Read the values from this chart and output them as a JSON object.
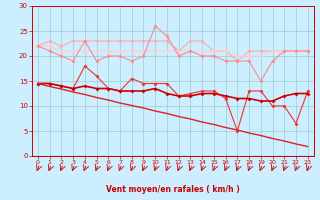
{
  "background_color": "#cceeff",
  "grid_color": "#99cccc",
  "xlabel": "Vent moyen/en rafales ( km/h )",
  "xlabel_color": "#cc0000",
  "tick_color": "#cc0000",
  "xlim": [
    -0.5,
    23.5
  ],
  "ylim": [
    0,
    30
  ],
  "yticks": [
    0,
    5,
    10,
    15,
    20,
    25,
    30
  ],
  "xticks": [
    0,
    1,
    2,
    3,
    4,
    5,
    6,
    7,
    8,
    9,
    10,
    11,
    12,
    13,
    14,
    15,
    16,
    17,
    18,
    19,
    20,
    21,
    22,
    23
  ],
  "x": [
    0,
    1,
    2,
    3,
    4,
    5,
    6,
    7,
    8,
    9,
    10,
    11,
    12,
    13,
    14,
    15,
    16,
    17,
    18,
    19,
    20,
    21,
    22,
    23
  ],
  "series": [
    {
      "y": [
        22,
        23,
        22,
        23,
        23,
        23,
        23,
        23,
        23,
        23,
        23,
        23,
        21,
        23,
        23,
        21,
        21,
        19,
        21,
        21,
        21,
        21,
        21,
        21
      ],
      "color": "#ffaaaa",
      "marker": "D",
      "markersize": 2,
      "linewidth": 0.8,
      "linestyle": "-"
    },
    {
      "y": [
        22,
        22,
        21,
        21,
        21,
        21,
        21,
        21,
        21,
        21,
        21,
        21,
        21,
        21,
        21,
        21,
        21,
        20,
        20,
        20,
        21,
        21,
        21,
        21
      ],
      "color": "#ffcccc",
      "marker": "D",
      "markersize": 2,
      "linewidth": 0.8,
      "linestyle": "-"
    },
    {
      "y": [
        22,
        21,
        20,
        19,
        23,
        19,
        20,
        20,
        19,
        20,
        26,
        24,
        20,
        21,
        20,
        20,
        19,
        19,
        19,
        15,
        19,
        21,
        21,
        21
      ],
      "color": "#ff8888",
      "marker": "D",
      "markersize": 2,
      "linewidth": 0.8,
      "linestyle": "-"
    },
    {
      "y": [
        14.5,
        14.5,
        14,
        13.5,
        18,
        16,
        13.5,
        13,
        15.5,
        14.5,
        14.5,
        14.5,
        12,
        12.5,
        13,
        13,
        11.5,
        5,
        13,
        13,
        10,
        10,
        6.5,
        13
      ],
      "color": "#ee3333",
      "marker": "D",
      "markersize": 2,
      "linewidth": 0.8,
      "linestyle": "-"
    },
    {
      "y": [
        14.5,
        14.5,
        14,
        13.5,
        14,
        13.5,
        13.5,
        13,
        13,
        13,
        13.5,
        12.5,
        12,
        12,
        12.5,
        12.5,
        12,
        11.5,
        11.5,
        11,
        11,
        12,
        12.5,
        12.5
      ],
      "color": "#cc0000",
      "marker": "D",
      "markersize": 2,
      "linewidth": 1.2,
      "linestyle": "-"
    },
    {
      "y": [
        14.5,
        13.9,
        13.4,
        12.8,
        12.3,
        11.7,
        11.2,
        10.6,
        10.1,
        9.6,
        9.0,
        8.5,
        7.9,
        7.4,
        6.8,
        6.3,
        5.7,
        5.2,
        4.6,
        4.1,
        3.5,
        3.0,
        2.4,
        1.9
      ],
      "color": "#dd2222",
      "marker": null,
      "markersize": 0,
      "linewidth": 1.0,
      "linestyle": "-"
    }
  ],
  "wind_arrow_color": "#cc0000"
}
